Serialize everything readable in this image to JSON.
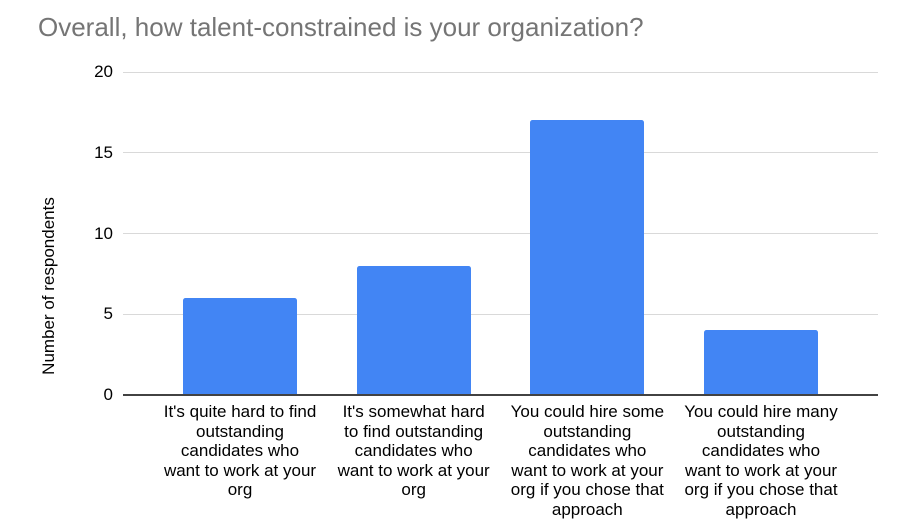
{
  "chart_data": {
    "type": "bar",
    "title": "Overall, how talent-constrained is your organization?",
    "ylabel": "Number of respondents",
    "xlabel": "",
    "categories": [
      "It's quite hard to find outstanding candidates who want to work at your org",
      "It's somewhat hard to find outstanding candidates who want to work at your org",
      "You could hire some outstanding candidates who want to work at your org if you chose that approach",
      "You could hire many outstanding candidates who want to work at your org if you chose that approach"
    ],
    "values": [
      6,
      8,
      17,
      4
    ],
    "yticks": [
      0,
      5,
      10,
      15,
      20
    ],
    "ylim": [
      0,
      20
    ],
    "grid": true,
    "legend": "none"
  },
  "colors": {
    "bar": "#4285f4",
    "title": "#757575",
    "axis_text": "#000000",
    "gridline": "#d9d9d9",
    "baseline": "#424242",
    "background": "#ffffff"
  }
}
